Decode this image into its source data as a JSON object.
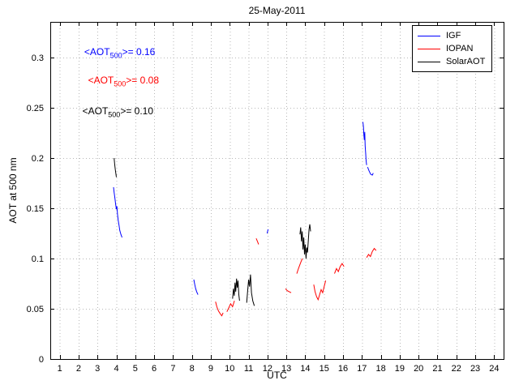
{
  "chart_data": {
    "type": "line",
    "title": "25-May-2011",
    "xlabel": "UTC",
    "ylabel": "AOT at 500 nm",
    "xlim": [
      0.5,
      24.5
    ],
    "ylim": [
      0,
      0.3355
    ],
    "grid": true,
    "legend_position": "top-right",
    "xticks": [
      1,
      2,
      3,
      4,
      5,
      6,
      7,
      8,
      9,
      10,
      11,
      12,
      13,
      14,
      15,
      16,
      17,
      18,
      19,
      20,
      21,
      22,
      23,
      24
    ],
    "yticks": [
      0,
      0.05,
      0.1,
      0.15,
      0.2,
      0.25,
      0.3
    ],
    "ytick_labels": [
      "0",
      "0.05",
      "0.1",
      "0.15",
      "0.2",
      "0.25",
      "0.3"
    ],
    "annotations": [
      {
        "x": 2.3,
        "y": 0.305,
        "color": "#0000ff",
        "pre": "<AOT",
        "sub": "500",
        "post": ">= 0.16"
      },
      {
        "x": 2.5,
        "y": 0.277,
        "color": "#ff0000",
        "pre": "<AOT",
        "sub": "500",
        "post": ">= 0.08"
      },
      {
        "x": 2.2,
        "y": 0.246,
        "color": "#000000",
        "pre": "<AOT",
        "sub": "500",
        "post": ">= 0.10"
      }
    ],
    "series": [
      {
        "name": "IGF",
        "color": "#0000ff",
        "segments": [
          [
            [
              3.85,
              0.171
            ],
            [
              3.88,
              0.166
            ],
            [
              3.92,
              0.16
            ],
            [
              3.96,
              0.154
            ],
            [
              4.0,
              0.149
            ],
            [
              4.03,
              0.152
            ],
            [
              4.06,
              0.144
            ],
            [
              4.1,
              0.138
            ],
            [
              4.14,
              0.133
            ],
            [
              4.18,
              0.128
            ],
            [
              4.24,
              0.124
            ],
            [
              4.3,
              0.121
            ]
          ],
          [
            [
              8.1,
              0.079
            ],
            [
              8.15,
              0.074
            ],
            [
              8.2,
              0.07
            ],
            [
              8.25,
              0.067
            ],
            [
              8.32,
              0.064
            ]
          ],
          [
            [
              11.98,
              0.125
            ],
            [
              12.03,
              0.129
            ]
          ],
          [
            [
              17.05,
              0.236
            ],
            [
              17.08,
              0.231
            ],
            [
              17.1,
              0.224
            ],
            [
              17.13,
              0.218
            ],
            [
              17.15,
              0.226
            ],
            [
              17.17,
              0.212
            ],
            [
              17.2,
              0.204
            ],
            [
              17.22,
              0.198
            ],
            [
              17.25,
              0.193
            ]
          ],
          [
            [
              17.3,
              0.191
            ],
            [
              17.38,
              0.187
            ],
            [
              17.46,
              0.184
            ],
            [
              17.55,
              0.183
            ],
            [
              17.6,
              0.185
            ]
          ]
        ]
      },
      {
        "name": "IOPAN",
        "color": "#ff0000",
        "segments": [
          [
            [
              9.25,
              0.057
            ],
            [
              9.32,
              0.052
            ],
            [
              9.4,
              0.048
            ],
            [
              9.5,
              0.045
            ],
            [
              9.58,
              0.043
            ],
            [
              9.65,
              0.046
            ]
          ],
          [
            [
              9.85,
              0.047
            ],
            [
              9.95,
              0.051
            ],
            [
              10.05,
              0.055
            ],
            [
              10.15,
              0.052
            ],
            [
              10.25,
              0.058
            ]
          ],
          [
            [
              11.4,
              0.12
            ],
            [
              11.47,
              0.117
            ],
            [
              11.53,
              0.114
            ]
          ],
          [
            [
              12.95,
              0.07
            ],
            [
              13.05,
              0.068
            ],
            [
              13.15,
              0.067
            ],
            [
              13.25,
              0.066
            ]
          ],
          [
            [
              13.55,
              0.085
            ],
            [
              13.62,
              0.089
            ],
            [
              13.7,
              0.093
            ],
            [
              13.78,
              0.097
            ],
            [
              13.85,
              0.1
            ]
          ],
          [
            [
              14.45,
              0.074
            ],
            [
              14.52,
              0.067
            ],
            [
              14.6,
              0.062
            ],
            [
              14.68,
              0.059
            ],
            [
              14.76,
              0.064
            ],
            [
              14.84,
              0.069
            ],
            [
              14.92,
              0.066
            ],
            [
              15.0,
              0.072
            ],
            [
              15.08,
              0.078
            ]
          ],
          [
            [
              15.55,
              0.085
            ],
            [
              15.65,
              0.09
            ],
            [
              15.75,
              0.087
            ],
            [
              15.85,
              0.092
            ],
            [
              15.95,
              0.095
            ],
            [
              16.05,
              0.092
            ]
          ],
          [
            [
              17.25,
              0.101
            ],
            [
              17.35,
              0.104
            ],
            [
              17.45,
              0.102
            ],
            [
              17.55,
              0.107
            ],
            [
              17.65,
              0.11
            ],
            [
              17.75,
              0.108
            ]
          ]
        ]
      },
      {
        "name": "SolarAOT",
        "color": "#000000",
        "segments": [
          [
            [
              3.88,
              0.2
            ],
            [
              3.91,
              0.194
            ],
            [
              3.94,
              0.189
            ],
            [
              3.97,
              0.185
            ],
            [
              4.0,
              0.181
            ]
          ],
          [
            [
              10.15,
              0.06
            ],
            [
              10.2,
              0.07
            ],
            [
              10.24,
              0.063
            ],
            [
              10.28,
              0.076
            ],
            [
              10.32,
              0.067
            ],
            [
              10.36,
              0.08
            ],
            [
              10.4,
              0.071
            ],
            [
              10.44,
              0.078
            ],
            [
              10.48,
              0.064
            ],
            [
              10.52,
              0.058
            ]
          ],
          [
            [
              10.9,
              0.056
            ],
            [
              10.95,
              0.068
            ],
            [
              11.0,
              0.079
            ],
            [
              11.05,
              0.072
            ],
            [
              11.1,
              0.084
            ],
            [
              11.15,
              0.066
            ],
            [
              11.22,
              0.058
            ],
            [
              11.3,
              0.053
            ]
          ],
          [
            [
              13.72,
              0.124
            ],
            [
              13.76,
              0.131
            ],
            [
              13.8,
              0.117
            ],
            [
              13.84,
              0.127
            ],
            [
              13.88,
              0.109
            ],
            [
              13.92,
              0.121
            ],
            [
              13.96,
              0.104
            ],
            [
              14.0,
              0.114
            ],
            [
              14.04,
              0.1
            ],
            [
              14.08,
              0.111
            ],
            [
              14.12,
              0.106
            ],
            [
              14.16,
              0.118
            ],
            [
              14.2,
              0.129
            ],
            [
              14.24,
              0.134
            ],
            [
              14.28,
              0.127
            ]
          ]
        ]
      }
    ],
    "colors": {
      "grid": "#b8b8b8",
      "axis": "#000000",
      "background": "#ffffff"
    }
  }
}
